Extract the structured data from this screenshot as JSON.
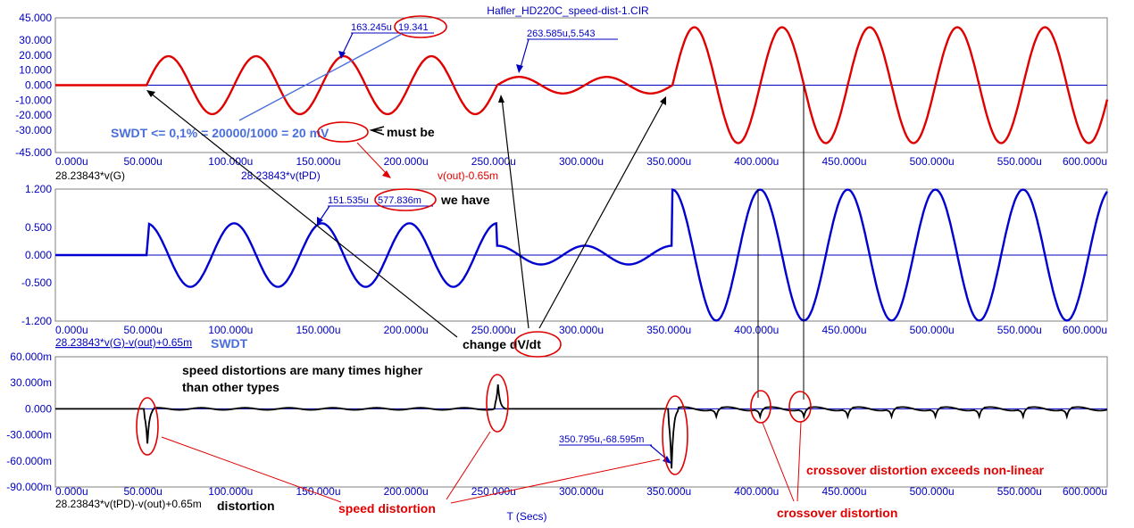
{
  "window_title": "Hafler_HD220C_speed-dist-1.CIR",
  "x_axis_label": "T (Secs)",
  "x_ticks": [
    "0.000u",
    "50.000u",
    "100.000u",
    "150.000u",
    "200.000u",
    "250.000u",
    "300.000u",
    "350.000u",
    "400.000u",
    "450.000u",
    "500.000u",
    "550.000u",
    "600.000u"
  ],
  "chart_data": [
    {
      "type": "line",
      "x_unit": "us",
      "xlim": [
        0,
        600
      ],
      "ylim": [
        -45,
        45
      ],
      "y_ticks": [
        "45.000",
        "30.000",
        "20.000",
        "10.000",
        "0.000",
        "-10.000",
        "-20.000",
        "-30.000",
        "-45.000"
      ],
      "trace_labels": [
        "28.23843*v(G)",
        "28.23843*v(tPD)",
        "v(out)-0.65m"
      ],
      "series": [
        {
          "name": "28.23843*v(G)",
          "color": "#e00000",
          "model": {
            "onset": 52,
            "period": 50,
            "segments": [
              {
                "from": 52,
                "to": 252,
                "amplitude": 19.341
              },
              {
                "from": 252,
                "to": 352,
                "amplitude": 5.543
              },
              {
                "from": 352,
                "to": 600,
                "amplitude": 38.7
              }
            ]
          }
        }
      ],
      "cursor": {
        "x": 163.245,
        "y": 19.341,
        "label_x": "163.245u",
        "label_y": "19.341"
      },
      "cursor2": {
        "x": 263.585,
        "y": 5.543,
        "label": "263.585u,5.543"
      }
    },
    {
      "type": "line",
      "x_unit": "us",
      "xlim": [
        0,
        600
      ],
      "ylim": [
        -1.2,
        1.2
      ],
      "y_ticks": [
        "1.200",
        "0.500",
        "0.000",
        "-0.500",
        "-1.200"
      ],
      "trace_labels": [
        "28.23843*v(G)-v(out)+0.65m"
      ],
      "series": [
        {
          "name": "28.23843*v(G)-v(out)+0.65m",
          "color": "#0000d0",
          "model": {
            "onset": 52,
            "period": 50,
            "phase_lead_us": 12.5,
            "segments": [
              {
                "from": 52,
                "to": 252,
                "amplitude": 0.578
              },
              {
                "from": 252,
                "to": 352,
                "amplitude": 0.17
              },
              {
                "from": 352,
                "to": 600,
                "amplitude": 1.19
              }
            ]
          }
        }
      ],
      "cursor": {
        "x": 151.535,
        "y": 0.577836,
        "label_x": "151.535u",
        "label_y": "577.836m"
      }
    },
    {
      "type": "line",
      "x_unit": "us",
      "xlim": [
        0,
        600
      ],
      "ylim": [
        -90,
        60
      ],
      "y_ticks": [
        "60.000m",
        "30.000m",
        "0.000",
        "-30.000m",
        "-60.000m",
        "-90.000m"
      ],
      "trace_labels": [
        "28.23843*v(tPD)-v(out)+0.65m"
      ],
      "series": [
        {
          "name": "28.23843*v(tPD)-v(out)+0.65m",
          "color": "#000000",
          "spikes": [
            {
              "x": 52,
              "y": -40
            },
            {
              "x": 252,
              "y": 28
            },
            {
              "x": 351,
              "y": -68.595
            }
          ],
          "crossover_dips_x": [
            377,
            402,
            427,
            452,
            477,
            502,
            527,
            552,
            577
          ]
        }
      ],
      "cursor": {
        "x": 350.795,
        "y": -68.595,
        "label": "350.795u,-68.595m"
      }
    }
  ],
  "annotations": {
    "swdt_formula": "SWDT <= 0,1% = 20000/1000 = 20 mV",
    "must_be": "must be",
    "we_have": "we have",
    "swdt": "SWDT",
    "change": "change dV/dt",
    "speed_many": "speed distortions are many times higher",
    "than_other": "than other types",
    "distortion": "distortion",
    "speed_distortion": "speed distortion",
    "crossover_exceeds": "crossover distortion exceeds non-linear",
    "crossover": "crossover distortion"
  }
}
